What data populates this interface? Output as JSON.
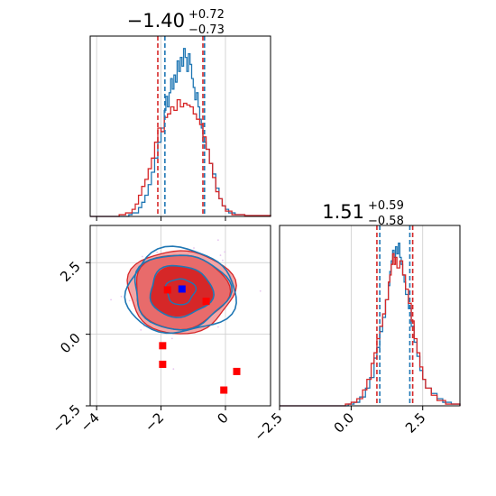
{
  "chart_data": {
    "type": "corner",
    "grid": true,
    "colors": {
      "hist_a": "#1f77b4",
      "hist_b": "#d62728",
      "contour_blue": "#1f77b4",
      "fill_red_outer": "#f4a6a6",
      "fill_red_mid": "#e86b6b",
      "fill_red_inner": "#d62728",
      "truth_marker": "#0000ff",
      "point_marker": "#ff0000",
      "scatter_cloud": "#e7c6f0"
    },
    "titles": [
      {
        "value": "−1.40",
        "plus": "+0.72",
        "minus": "−0.73"
      },
      {
        "value": "1.51",
        "plus": "+0.59",
        "minus": "−0.58"
      }
    ],
    "param1": {
      "xlim": [
        -4.2,
        1.4
      ],
      "ticks": [
        -4,
        -2,
        0
      ],
      "tick_labels": [
        "−4",
        "−2",
        "0"
      ],
      "hist_quantiles_blue": [
        -1.88,
        -0.65
      ],
      "hist_quantiles_red": [
        -2.1,
        -0.7
      ],
      "hist_blue": [
        [
          -4.2,
          0
        ],
        [
          -3.0,
          0.01
        ],
        [
          -2.9,
          0.02
        ],
        [
          -2.7,
          0.05
        ],
        [
          -2.6,
          0.08
        ],
        [
          -2.5,
          0.12
        ],
        [
          -2.4,
          0.18
        ],
        [
          -2.3,
          0.25
        ],
        [
          -2.2,
          0.33
        ],
        [
          -2.1,
          0.42
        ],
        [
          -2.0,
          0.5
        ],
        [
          -1.9,
          0.6
        ],
        [
          -1.85,
          0.68
        ],
        [
          -1.8,
          0.62
        ],
        [
          -1.75,
          0.7
        ],
        [
          -1.7,
          0.78
        ],
        [
          -1.65,
          0.72
        ],
        [
          -1.6,
          0.8
        ],
        [
          -1.55,
          0.76
        ],
        [
          -1.5,
          0.88
        ],
        [
          -1.45,
          0.82
        ],
        [
          -1.4,
          0.9
        ],
        [
          -1.35,
          0.85
        ],
        [
          -1.3,
          0.95
        ],
        [
          -1.25,
          0.9
        ],
        [
          -1.2,
          0.82
        ],
        [
          -1.15,
          0.92
        ],
        [
          -1.1,
          0.86
        ],
        [
          -1.05,
          0.78
        ],
        [
          -1.0,
          0.73
        ],
        [
          -0.95,
          0.66
        ],
        [
          -0.9,
          0.7
        ],
        [
          -0.85,
          0.62
        ],
        [
          -0.8,
          0.55
        ],
        [
          -0.75,
          0.5
        ],
        [
          -0.7,
          0.42
        ],
        [
          -0.6,
          0.38
        ],
        [
          -0.5,
          0.3
        ],
        [
          -0.4,
          0.24
        ],
        [
          -0.3,
          0.16
        ],
        [
          -0.2,
          0.1
        ],
        [
          -0.1,
          0.06
        ],
        [
          0.0,
          0.04
        ],
        [
          0.1,
          0.02
        ],
        [
          0.3,
          0.01
        ],
        [
          0.6,
          0.005
        ],
        [
          1.4,
          0
        ]
      ],
      "hist_red": [
        [
          -4.2,
          0
        ],
        [
          -3.3,
          0.01
        ],
        [
          -3.1,
          0.02
        ],
        [
          -2.9,
          0.04
        ],
        [
          -2.8,
          0.07
        ],
        [
          -2.7,
          0.12
        ],
        [
          -2.6,
          0.17
        ],
        [
          -2.5,
          0.21
        ],
        [
          -2.4,
          0.27
        ],
        [
          -2.3,
          0.33
        ],
        [
          -2.2,
          0.42
        ],
        [
          -2.1,
          0.5
        ],
        [
          -2.0,
          0.48
        ],
        [
          -1.9,
          0.56
        ],
        [
          -1.8,
          0.58
        ],
        [
          -1.7,
          0.62
        ],
        [
          -1.6,
          0.6
        ],
        [
          -1.5,
          0.66
        ],
        [
          -1.4,
          0.62
        ],
        [
          -1.3,
          0.64
        ],
        [
          -1.2,
          0.63
        ],
        [
          -1.1,
          0.62
        ],
        [
          -1.0,
          0.58
        ],
        [
          -0.9,
          0.55
        ],
        [
          -0.8,
          0.52
        ],
        [
          -0.7,
          0.45
        ],
        [
          -0.6,
          0.38
        ],
        [
          -0.5,
          0.3
        ],
        [
          -0.4,
          0.22
        ],
        [
          -0.3,
          0.14
        ],
        [
          -0.2,
          0.1
        ],
        [
          -0.1,
          0.06
        ],
        [
          0.0,
          0.03
        ],
        [
          0.2,
          0.01
        ],
        [
          0.6,
          0.005
        ],
        [
          1.4,
          0
        ]
      ]
    },
    "param2": {
      "xlim": [
        -2.5,
        3.8
      ],
      "ticks": [
        -2.5,
        0.0,
        2.5
      ],
      "tick_labels": [
        "−2.5",
        "0.0",
        "2.5"
      ],
      "hist_quantiles_blue": [
        1.0,
        2.05
      ],
      "hist_quantiles_red": [
        0.9,
        2.15
      ],
      "hist_blue": [
        [
          -2.5,
          0
        ],
        [
          -0.1,
          0.01
        ],
        [
          0.1,
          0.02
        ],
        [
          0.3,
          0.05
        ],
        [
          0.5,
          0.1
        ],
        [
          0.65,
          0.16
        ],
        [
          0.8,
          0.27
        ],
        [
          0.9,
          0.33
        ],
        [
          1.0,
          0.42
        ],
        [
          1.1,
          0.5
        ],
        [
          1.2,
          0.6
        ],
        [
          1.3,
          0.68
        ],
        [
          1.35,
          0.76
        ],
        [
          1.4,
          0.82
        ],
        [
          1.45,
          0.88
        ],
        [
          1.5,
          0.84
        ],
        [
          1.55,
          0.9
        ],
        [
          1.6,
          0.86
        ],
        [
          1.65,
          0.92
        ],
        [
          1.7,
          0.84
        ],
        [
          1.75,
          0.8
        ],
        [
          1.8,
          0.74
        ],
        [
          1.85,
          0.7
        ],
        [
          1.9,
          0.63
        ],
        [
          2.0,
          0.55
        ],
        [
          2.1,
          0.45
        ],
        [
          2.2,
          0.36
        ],
        [
          2.3,
          0.28
        ],
        [
          2.4,
          0.2
        ],
        [
          2.5,
          0.15
        ],
        [
          2.6,
          0.1
        ],
        [
          2.8,
          0.07
        ],
        [
          3.0,
          0.04
        ],
        [
          3.2,
          0.02
        ],
        [
          3.5,
          0.01
        ],
        [
          3.8,
          0
        ]
      ],
      "hist_red": [
        [
          -2.5,
          0
        ],
        [
          -0.2,
          0.01
        ],
        [
          0.0,
          0.02
        ],
        [
          0.2,
          0.04
        ],
        [
          0.4,
          0.09
        ],
        [
          0.55,
          0.15
        ],
        [
          0.7,
          0.24
        ],
        [
          0.8,
          0.3
        ],
        [
          0.9,
          0.38
        ],
        [
          1.0,
          0.45
        ],
        [
          1.1,
          0.52
        ],
        [
          1.2,
          0.6
        ],
        [
          1.3,
          0.7
        ],
        [
          1.35,
          0.74
        ],
        [
          1.4,
          0.8
        ],
        [
          1.45,
          0.86
        ],
        [
          1.5,
          0.8
        ],
        [
          1.55,
          0.84
        ],
        [
          1.6,
          0.78
        ],
        [
          1.7,
          0.82
        ],
        [
          1.8,
          0.74
        ],
        [
          1.9,
          0.66
        ],
        [
          2.0,
          0.58
        ],
        [
          2.1,
          0.48
        ],
        [
          2.2,
          0.38
        ],
        [
          2.3,
          0.3
        ],
        [
          2.4,
          0.22
        ],
        [
          2.5,
          0.15
        ],
        [
          2.6,
          0.1
        ],
        [
          2.8,
          0.06
        ],
        [
          3.0,
          0.03
        ],
        [
          3.3,
          0.01
        ],
        [
          3.8,
          0
        ]
      ]
    },
    "joint": {
      "xlim": [
        -4.2,
        1.4
      ],
      "ylim": [
        -2.5,
        3.8
      ],
      "y_ticks": [
        2.5,
        0.0,
        -2.5
      ],
      "y_tick_labels": [
        "2.5",
        "0.0",
        "−2.5"
      ],
      "center": [
        -1.4,
        1.5
      ],
      "contour_radii": [
        [
          0.45,
          0.45
        ],
        [
          0.95,
          0.85
        ],
        [
          1.45,
          1.3
        ],
        [
          1.65,
          1.45
        ]
      ],
      "truth_point": [
        -1.35,
        1.58
      ],
      "red_points": [
        [
          -1.8,
          1.55
        ],
        [
          -0.6,
          1.15
        ],
        [
          -1.95,
          -0.4
        ],
        [
          -1.95,
          -1.05
        ],
        [
          0.35,
          -1.3
        ],
        [
          -0.05,
          -1.95
        ]
      ]
    }
  }
}
